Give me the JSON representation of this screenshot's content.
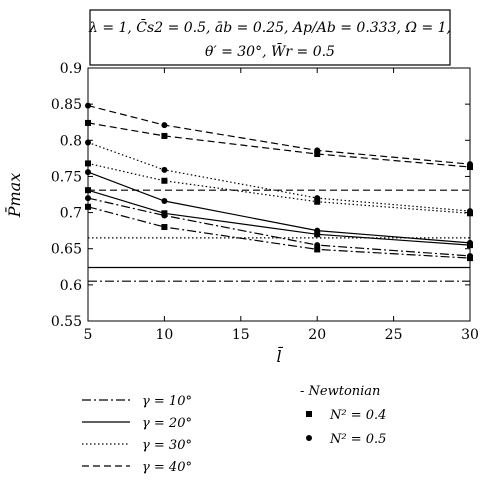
{
  "header": {
    "line1": "λ = 1, C̄s2 = 0.5, āb = 0.25, Ap/Ab = 0.333, Ω = 1,",
    "line2": "θ′ = 30°, W̄r = 0.5"
  },
  "chart_data": {
    "type": "line",
    "xlabel": "l̄",
    "ylabel": "P̄max",
    "xlim": [
      5,
      30
    ],
    "ylim": [
      0.55,
      0.9
    ],
    "x_ticks": [
      "5",
      "10",
      "15",
      "20",
      "25",
      "30"
    ],
    "y_ticks": [
      "0.55",
      "0.6",
      "0.65",
      "0.7",
      "0.75",
      "0.8",
      "0.85",
      "0.9"
    ],
    "grid": false,
    "x": [
      5,
      10,
      20,
      30
    ],
    "series": [
      {
        "name": "γ = 10°",
        "style": "dashdot",
        "fluid": "Newtonian",
        "values": [
          0.605,
          0.605,
          0.605,
          0.605
        ]
      },
      {
        "name": "γ = 10°",
        "style": "dashdot",
        "fluid": "N² = 0.4",
        "values": [
          0.708,
          0.68,
          0.649,
          0.637
        ]
      },
      {
        "name": "γ = 10°",
        "style": "dashdot",
        "fluid": "N² = 0.5",
        "values": [
          0.72,
          0.696,
          0.655,
          0.64
        ]
      },
      {
        "name": "γ = 20°",
        "style": "solid",
        "fluid": "Newtonian",
        "values": [
          0.624,
          0.624,
          0.624,
          0.624
        ]
      },
      {
        "name": "γ = 20°",
        "style": "solid",
        "fluid": "N² = 0.4",
        "values": [
          0.731,
          0.699,
          0.67,
          0.655
        ]
      },
      {
        "name": "γ = 20°",
        "style": "solid",
        "fluid": "N² = 0.5",
        "values": [
          0.756,
          0.716,
          0.675,
          0.658
        ]
      },
      {
        "name": "γ = 30°",
        "style": "dotted",
        "fluid": "Newtonian",
        "values": [
          0.665,
          0.665,
          0.665,
          0.665
        ]
      },
      {
        "name": "γ = 30°",
        "style": "dotted",
        "fluid": "N² = 0.4",
        "values": [
          0.768,
          0.744,
          0.715,
          0.699
        ]
      },
      {
        "name": "γ = 30°",
        "style": "dotted",
        "fluid": "N² = 0.5",
        "values": [
          0.797,
          0.759,
          0.72,
          0.702
        ]
      },
      {
        "name": "γ = 40°",
        "style": "dashed",
        "fluid": "Newtonian",
        "values": [
          0.731,
          0.731,
          0.731,
          0.731
        ]
      },
      {
        "name": "γ = 40°",
        "style": "dashed",
        "fluid": "N² = 0.4",
        "values": [
          0.824,
          0.806,
          0.781,
          0.763
        ]
      },
      {
        "name": "γ = 40°",
        "style": "dashed",
        "fluid": "N² = 0.5",
        "values": [
          0.848,
          0.821,
          0.786,
          0.767
        ]
      }
    ]
  },
  "legend": {
    "line_styles": [
      {
        "label": "γ = 10°",
        "style": "dashdot"
      },
      {
        "label": "γ = 20°",
        "style": "solid"
      },
      {
        "label": "γ = 30°",
        "style": "dotted"
      },
      {
        "label": "γ = 40°",
        "style": "dashed"
      }
    ],
    "markers": [
      {
        "label": "- Newtonian",
        "marker": "none"
      },
      {
        "label": "N² = 0.4",
        "marker": "square"
      },
      {
        "label": "N² = 0.5",
        "marker": "circle"
      }
    ]
  }
}
